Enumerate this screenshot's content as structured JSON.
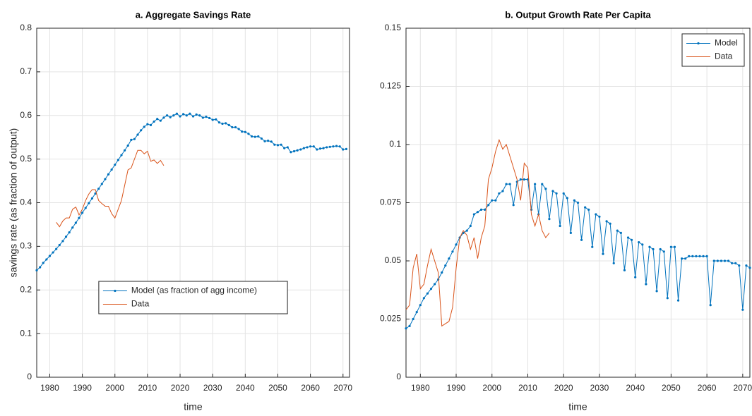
{
  "chart_data": [
    {
      "type": "line",
      "title": "a. Aggregate Savings Rate",
      "xlabel": "time",
      "ylabel": "savings rate (as fraction of output)",
      "xlim": [
        1976,
        2072
      ],
      "xticks": [
        1980,
        1990,
        2000,
        2010,
        2020,
        2030,
        2040,
        2050,
        2060,
        2070
      ],
      "ylim": [
        0,
        0.8
      ],
      "yticks": [
        0,
        0.1,
        0.2,
        0.3,
        0.4,
        0.5,
        0.6,
        0.7,
        0.8
      ],
      "grid": true,
      "legend": "lower center",
      "series": [
        {
          "name": "Model (as fraction of agg income)",
          "color": "#0072bd",
          "marker": "dot",
          "x": [
            1976,
            1977,
            1978,
            1979,
            1980,
            1981,
            1982,
            1983,
            1984,
            1985,
            1986,
            1987,
            1988,
            1989,
            1990,
            1991,
            1992,
            1993,
            1994,
            1995,
            1996,
            1997,
            1998,
            1999,
            2000,
            2001,
            2002,
            2003,
            2004,
            2005,
            2006,
            2007,
            2008,
            2009,
            2010,
            2011,
            2012,
            2013,
            2014,
            2015,
            2016,
            2017,
            2018,
            2019,
            2020,
            2021,
            2022,
            2023,
            2024,
            2025,
            2026,
            2027,
            2028,
            2029,
            2030,
            2031,
            2032,
            2033,
            2034,
            2035,
            2036,
            2037,
            2038,
            2039,
            2040,
            2041,
            2042,
            2043,
            2044,
            2045,
            2046,
            2047,
            2048,
            2049,
            2050,
            2051,
            2052,
            2053,
            2054,
            2055,
            2056,
            2057,
            2058,
            2059,
            2060,
            2061,
            2062,
            2063,
            2064,
            2065,
            2066,
            2067,
            2068,
            2069,
            2070,
            2071
          ],
          "values": [
            0.245,
            0.252,
            0.262,
            0.27,
            0.278,
            0.286,
            0.294,
            0.303,
            0.312,
            0.322,
            0.332,
            0.343,
            0.354,
            0.365,
            0.377,
            0.388,
            0.399,
            0.41,
            0.421,
            0.432,
            0.443,
            0.454,
            0.465,
            0.476,
            0.487,
            0.498,
            0.509,
            0.52,
            0.531,
            0.544,
            0.546,
            0.556,
            0.566,
            0.574,
            0.58,
            0.578,
            0.586,
            0.592,
            0.588,
            0.595,
            0.6,
            0.596,
            0.6,
            0.604,
            0.598,
            0.603,
            0.6,
            0.604,
            0.598,
            0.602,
            0.6,
            0.595,
            0.597,
            0.594,
            0.59,
            0.591,
            0.584,
            0.581,
            0.582,
            0.578,
            0.573,
            0.573,
            0.569,
            0.563,
            0.562,
            0.558,
            0.552,
            0.551,
            0.552,
            0.547,
            0.541,
            0.542,
            0.54,
            0.533,
            0.532,
            0.533,
            0.525,
            0.527,
            0.516,
            0.518,
            0.52,
            0.522,
            0.525,
            0.527,
            0.529,
            0.529,
            0.522,
            0.524,
            0.525,
            0.527,
            0.528,
            0.529,
            0.53,
            0.529,
            0.522,
            0.523
          ]
        },
        {
          "name": "Data",
          "color": "#d95319",
          "x": [
            1982,
            1983,
            1984,
            1985,
            1986,
            1987,
            1988,
            1989,
            1990,
            1991,
            1992,
            1993,
            1994,
            1995,
            1996,
            1997,
            1998,
            1999,
            2000,
            2001,
            2002,
            2003,
            2004,
            2005,
            2006,
            2007,
            2008,
            2009,
            2010,
            2011,
            2012,
            2013,
            2014,
            2015
          ],
          "values": [
            0.355,
            0.345,
            0.358,
            0.365,
            0.365,
            0.385,
            0.39,
            0.372,
            0.385,
            0.405,
            0.42,
            0.43,
            0.43,
            0.405,
            0.398,
            0.392,
            0.392,
            0.375,
            0.365,
            0.385,
            0.405,
            0.44,
            0.475,
            0.48,
            0.5,
            0.52,
            0.52,
            0.512,
            0.518,
            0.495,
            0.498,
            0.49,
            0.497,
            0.485
          ]
        }
      ]
    },
    {
      "type": "line",
      "title": "b. Output Growth Rate Per Capita",
      "xlabel": "time",
      "xlim": [
        1976,
        2072
      ],
      "xticks": [
        1980,
        1990,
        2000,
        2010,
        2020,
        2030,
        2040,
        2050,
        2060,
        2070
      ],
      "ylim": [
        0,
        0.15
      ],
      "yticks": [
        0,
        0.025,
        0.05,
        0.075,
        0.1,
        0.125,
        0.15
      ],
      "grid": true,
      "legend": "upper right",
      "series": [
        {
          "name": "Model",
          "color": "#0072bd",
          "marker": "dot",
          "x": [
            1976,
            1977,
            1978,
            1979,
            1980,
            1981,
            1982,
            1983,
            1984,
            1985,
            1986,
            1987,
            1988,
            1989,
            1990,
            1991,
            1992,
            1993,
            1994,
            1995,
            1996,
            1997,
            1998,
            1999,
            2000,
            2001,
            2002,
            2003,
            2004,
            2005,
            2006,
            2007,
            2008,
            2009,
            2010,
            2011,
            2012,
            2013,
            2014,
            2015,
            2016,
            2017,
            2018,
            2019,
            2020,
            2021,
            2022,
            2023,
            2024,
            2025,
            2026,
            2027,
            2028,
            2029,
            2030,
            2031,
            2032,
            2033,
            2034,
            2035,
            2036,
            2037,
            2038,
            2039,
            2040,
            2041,
            2042,
            2043,
            2044,
            2045,
            2046,
            2047,
            2048,
            2049,
            2050,
            2051,
            2052,
            2053,
            2054,
            2055,
            2056,
            2057,
            2058,
            2059,
            2060,
            2061,
            2062,
            2063,
            2064,
            2065,
            2066,
            2067,
            2068,
            2069,
            2070,
            2071,
            2072
          ],
          "values": [
            0.021,
            0.022,
            0.025,
            0.028,
            0.031,
            0.034,
            0.036,
            0.038,
            0.04,
            0.042,
            0.045,
            0.048,
            0.051,
            0.054,
            0.057,
            0.06,
            0.062,
            0.063,
            0.065,
            0.07,
            0.071,
            0.072,
            0.072,
            0.074,
            0.076,
            0.076,
            0.079,
            0.08,
            0.083,
            0.083,
            0.074,
            0.084,
            0.085,
            0.085,
            0.085,
            0.072,
            0.083,
            0.07,
            0.083,
            0.081,
            0.068,
            0.08,
            0.079,
            0.065,
            0.079,
            0.077,
            0.062,
            0.076,
            0.075,
            0.059,
            0.073,
            0.072,
            0.056,
            0.07,
            0.069,
            0.053,
            0.067,
            0.066,
            0.049,
            0.063,
            0.062,
            0.046,
            0.06,
            0.059,
            0.043,
            0.058,
            0.057,
            0.04,
            0.056,
            0.055,
            0.037,
            0.055,
            0.054,
            0.034,
            0.056,
            0.056,
            0.033,
            0.051,
            0.051,
            0.052,
            0.052,
            0.052,
            0.052,
            0.052,
            0.052,
            0.031,
            0.05,
            0.05,
            0.05,
            0.05,
            0.05,
            0.049,
            0.049,
            0.048,
            0.029,
            0.048,
            0.047
          ]
        },
        {
          "name": "Data",
          "color": "#d95319",
          "x": [
            1976,
            1977,
            1978,
            1979,
            1980,
            1981,
            1982,
            1983,
            1984,
            1985,
            1986,
            1987,
            1988,
            1989,
            1990,
            1991,
            1992,
            1993,
            1994,
            1995,
            1996,
            1997,
            1998,
            1999,
            2000,
            2001,
            2002,
            2003,
            2004,
            2005,
            2006,
            2007,
            2008,
            2009,
            2010,
            2011,
            2012,
            2013,
            2014,
            2015,
            2016
          ],
          "values": [
            0.029,
            0.031,
            0.047,
            0.053,
            0.038,
            0.04,
            0.048,
            0.055,
            0.05,
            0.045,
            0.022,
            0.023,
            0.024,
            0.03,
            0.047,
            0.06,
            0.063,
            0.061,
            0.055,
            0.06,
            0.051,
            0.06,
            0.065,
            0.085,
            0.09,
            0.097,
            0.102,
            0.098,
            0.1,
            0.095,
            0.09,
            0.085,
            0.076,
            0.092,
            0.09,
            0.07,
            0.065,
            0.07,
            0.063,
            0.06,
            0.062
          ]
        }
      ]
    }
  ]
}
